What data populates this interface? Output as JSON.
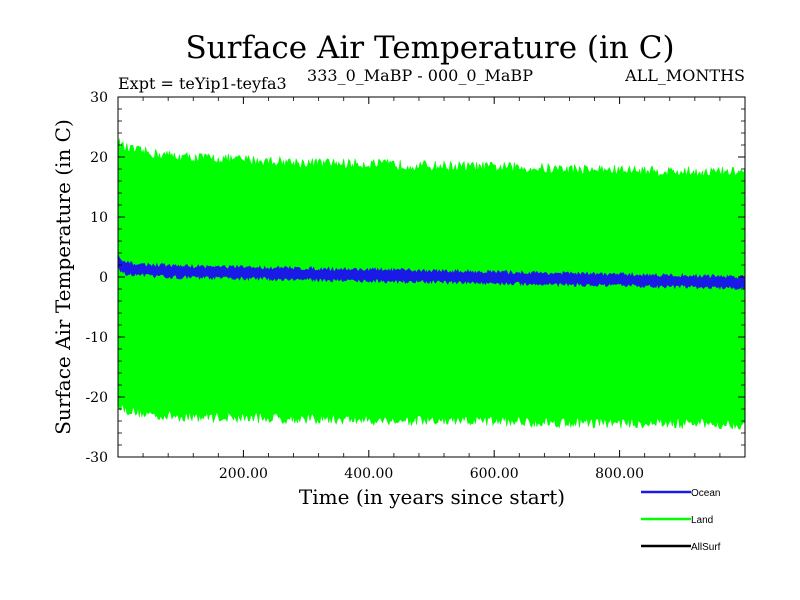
{
  "chart_data": {
    "type": "line",
    "title": "Surface Air Temperature (in C)",
    "subtitle_left": "Expt = teYip1-teyfa3",
    "subtitle_center": "333_0_MaBP - 000_0_MaBP",
    "subtitle_right": "ALL_MONTHS",
    "xlabel": "Time (in years since start)",
    "ylabel": "Surface Air Temperature (in C)",
    "xlim": [
      0,
      1000
    ],
    "ylim": [
      -30,
      30
    ],
    "x_ticks": [
      200,
      400,
      600,
      800
    ],
    "x_tick_labels": [
      "200.00",
      "400.00",
      "600.00",
      "800.00"
    ],
    "y_ticks": [
      30,
      20,
      10,
      0,
      -10,
      -20,
      -30
    ],
    "y_tick_labels": [
      "30",
      "20",
      "10",
      "0",
      "-10",
      "-20",
      "-30"
    ],
    "series": [
      {
        "name": "Ocean",
        "color": "#1a1ae6",
        "note": "seasonal range band",
        "x": [
          0,
          5,
          20,
          50,
          100,
          200,
          300,
          400,
          500,
          600,
          700,
          800,
          900,
          1000
        ],
        "upper": [
          3.5,
          2.6,
          2.2,
          2.0,
          1.8,
          1.6,
          1.4,
          1.2,
          1.0,
          0.8,
          0.6,
          0.4,
          0.2,
          0.0
        ],
        "lower": [
          1.5,
          0.8,
          0.4,
          0.2,
          0.0,
          -0.2,
          -0.4,
          -0.6,
          -0.8,
          -1.0,
          -1.2,
          -1.4,
          -1.6,
          -1.8
        ]
      },
      {
        "name": "Land",
        "color": "#00ff00",
        "note": "seasonal range band",
        "x": [
          0,
          10,
          30,
          60,
          100,
          200,
          300,
          400,
          500,
          600,
          700,
          800,
          900,
          1000
        ],
        "upper": [
          22.5,
          21.5,
          21.0,
          20.5,
          20.0,
          19.5,
          19.0,
          18.8,
          18.5,
          18.3,
          18.0,
          17.8,
          17.5,
          17.5
        ],
        "lower": [
          -21.0,
          -22.0,
          -22.5,
          -23.0,
          -23.2,
          -23.4,
          -23.6,
          -23.8,
          -24.0,
          -24.0,
          -24.2,
          -24.3,
          -24.4,
          -24.5
        ]
      },
      {
        "name": "AllSurf",
        "color": "#000000",
        "note": "legend entry only; not distinctly visible in plot",
        "x": [],
        "upper": [],
        "lower": []
      }
    ]
  }
}
